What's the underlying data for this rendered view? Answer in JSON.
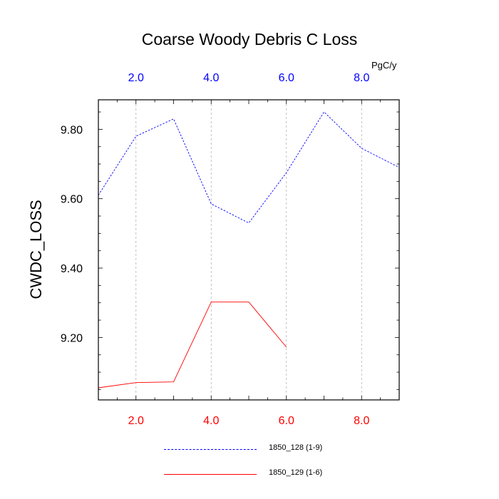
{
  "chart_data": {
    "type": "line",
    "title": "Coarse Woody Debris C Loss",
    "units": "PgC/y",
    "ylabel": "CWDC_LOSS",
    "xlim": [
      1,
      9
    ],
    "ylim": [
      9.02,
      9.885
    ],
    "x_ticks": [
      "2.0",
      "4.0",
      "6.0",
      "8.0"
    ],
    "y_ticks": [
      "9.20",
      "9.40",
      "9.60",
      "9.80"
    ],
    "grid": "vertical dashed",
    "series": [
      {
        "name": "1850_128 (1-9)",
        "color": "#0000ff",
        "style": "dashed",
        "x": [
          1,
          2,
          3,
          4,
          5,
          6,
          7,
          8,
          9
        ],
        "values": [
          9.61,
          9.78,
          9.83,
          9.585,
          9.53,
          9.675,
          9.85,
          9.745,
          9.69
        ]
      },
      {
        "name": "1850_129 (1-6)",
        "color": "#ff0000",
        "style": "solid",
        "x": [
          1,
          2,
          3,
          4,
          5,
          6
        ],
        "values": [
          9.055,
          9.07,
          9.072,
          9.302,
          9.302,
          9.172
        ]
      }
    ],
    "legend_position": "bottom"
  }
}
